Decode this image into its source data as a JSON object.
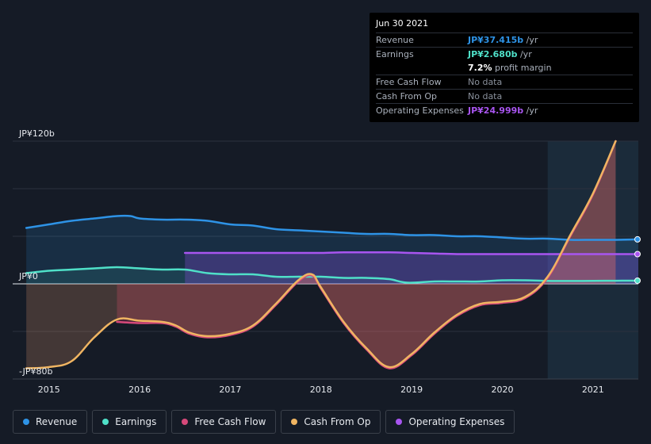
{
  "chart_data": {
    "type": "line",
    "title": "",
    "xlabel": "",
    "ylabel": "",
    "x_range": [
      2014.6,
      2021.5
    ],
    "ylim": [
      -80,
      120
    ],
    "y_ticks": [
      {
        "value": 120,
        "label": "JP¥120b"
      },
      {
        "value": 0,
        "label": "JP¥0"
      },
      {
        "value": -80,
        "label": "-JP¥80b"
      }
    ],
    "x_ticks": [
      {
        "value": 2015,
        "label": "2015"
      },
      {
        "value": 2016,
        "label": "2016"
      },
      {
        "value": 2017,
        "label": "2017"
      },
      {
        "value": 2018,
        "label": "2018"
      },
      {
        "value": 2019,
        "label": "2019"
      },
      {
        "value": 2020,
        "label": "2020"
      },
      {
        "value": 2021,
        "label": "2021"
      }
    ],
    "highlight_range": [
      2020.5,
      2021.5
    ],
    "series": [
      {
        "name": "Revenue",
        "color": "#2e93e6",
        "points": [
          [
            2014.75,
            47
          ],
          [
            2015.0,
            50
          ],
          [
            2015.25,
            53
          ],
          [
            2015.5,
            55
          ],
          [
            2015.75,
            57
          ],
          [
            2015.9,
            57
          ],
          [
            2016.0,
            55
          ],
          [
            2016.25,
            54
          ],
          [
            2016.5,
            54
          ],
          [
            2016.75,
            53
          ],
          [
            2017.0,
            50
          ],
          [
            2017.25,
            49
          ],
          [
            2017.5,
            46
          ],
          [
            2017.75,
            45
          ],
          [
            2018.0,
            44
          ],
          [
            2018.25,
            43
          ],
          [
            2018.5,
            42
          ],
          [
            2018.75,
            42
          ],
          [
            2019.0,
            41
          ],
          [
            2019.25,
            41
          ],
          [
            2019.5,
            40
          ],
          [
            2019.75,
            40
          ],
          [
            2020.0,
            39
          ],
          [
            2020.25,
            38
          ],
          [
            2020.5,
            38
          ],
          [
            2020.75,
            37
          ],
          [
            2021.0,
            37
          ],
          [
            2021.25,
            37
          ],
          [
            2021.5,
            37.4
          ]
        ]
      },
      {
        "name": "Earnings",
        "color": "#4fe0c8",
        "points": [
          [
            2014.75,
            9
          ],
          [
            2015.0,
            11
          ],
          [
            2015.25,
            12
          ],
          [
            2015.5,
            13
          ],
          [
            2015.75,
            14
          ],
          [
            2016.0,
            13
          ],
          [
            2016.25,
            12
          ],
          [
            2016.5,
            12
          ],
          [
            2016.75,
            9
          ],
          [
            2017.0,
            8
          ],
          [
            2017.25,
            8
          ],
          [
            2017.5,
            6
          ],
          [
            2017.75,
            6
          ],
          [
            2018.0,
            6
          ],
          [
            2018.25,
            5
          ],
          [
            2018.5,
            5
          ],
          [
            2018.75,
            4
          ],
          [
            2018.95,
            1
          ],
          [
            2019.25,
            2
          ],
          [
            2019.5,
            2
          ],
          [
            2019.75,
            2
          ],
          [
            2020.0,
            3
          ],
          [
            2020.25,
            3
          ],
          [
            2020.5,
            2.5
          ],
          [
            2020.75,
            2.4
          ],
          [
            2021.0,
            2.5
          ],
          [
            2021.25,
            2.6
          ],
          [
            2021.5,
            2.68
          ]
        ]
      },
      {
        "name": "Free Cash Flow",
        "color": "#d6497a",
        "points": [
          [
            2015.75,
            -32
          ],
          [
            2016.0,
            -33
          ],
          [
            2016.25,
            -33
          ],
          [
            2016.4,
            -36
          ],
          [
            2016.55,
            -42
          ],
          [
            2016.75,
            -45
          ],
          [
            2017.0,
            -43
          ],
          [
            2017.25,
            -36
          ],
          [
            2017.5,
            -18
          ],
          [
            2017.75,
            2
          ],
          [
            2017.9,
            7
          ],
          [
            2018.0,
            -4
          ],
          [
            2018.25,
            -33
          ],
          [
            2018.5,
            -55
          ],
          [
            2018.75,
            -71
          ],
          [
            2019.0,
            -60
          ],
          [
            2019.25,
            -42
          ],
          [
            2019.5,
            -27
          ],
          [
            2019.75,
            -18
          ],
          [
            2020.0,
            -16
          ],
          [
            2020.25,
            -12
          ],
          [
            2020.5,
            5
          ],
          [
            2020.75,
            40
          ],
          [
            2021.0,
            75
          ],
          [
            2021.25,
            120
          ]
        ]
      },
      {
        "name": "Cash From Op",
        "color": "#f0b562",
        "points": [
          [
            2014.75,
            -71
          ],
          [
            2015.0,
            -70
          ],
          [
            2015.25,
            -65
          ],
          [
            2015.5,
            -45
          ],
          [
            2015.75,
            -30
          ],
          [
            2016.0,
            -31
          ],
          [
            2016.25,
            -32
          ],
          [
            2016.4,
            -35
          ],
          [
            2016.55,
            -41
          ],
          [
            2016.75,
            -44
          ],
          [
            2017.0,
            -42
          ],
          [
            2017.25,
            -35
          ],
          [
            2017.5,
            -17
          ],
          [
            2017.75,
            3
          ],
          [
            2017.9,
            8
          ],
          [
            2018.0,
            -3
          ],
          [
            2018.25,
            -32
          ],
          [
            2018.5,
            -54
          ],
          [
            2018.75,
            -70
          ],
          [
            2019.0,
            -59
          ],
          [
            2019.25,
            -41
          ],
          [
            2019.5,
            -26
          ],
          [
            2019.75,
            -17
          ],
          [
            2020.0,
            -15
          ],
          [
            2020.25,
            -11
          ],
          [
            2020.5,
            6
          ],
          [
            2020.75,
            41
          ],
          [
            2021.0,
            76
          ],
          [
            2021.25,
            120
          ]
        ]
      },
      {
        "name": "Operating Expenses",
        "color": "#a855f0",
        "points": [
          [
            2016.5,
            26
          ],
          [
            2016.75,
            26
          ],
          [
            2017.0,
            26
          ],
          [
            2017.25,
            26
          ],
          [
            2017.5,
            26
          ],
          [
            2017.75,
            26
          ],
          [
            2018.0,
            26
          ],
          [
            2018.25,
            26.5
          ],
          [
            2018.5,
            26.5
          ],
          [
            2018.75,
            26.5
          ],
          [
            2019.0,
            26
          ],
          [
            2019.25,
            25.5
          ],
          [
            2019.5,
            25
          ],
          [
            2019.75,
            25
          ],
          [
            2020.0,
            25
          ],
          [
            2020.25,
            25
          ],
          [
            2020.5,
            25
          ],
          [
            2020.75,
            25
          ],
          [
            2021.0,
            25
          ],
          [
            2021.25,
            25
          ],
          [
            2021.5,
            25
          ]
        ]
      }
    ]
  },
  "tooltip": {
    "date": "Jun 30 2021",
    "rows": [
      {
        "label": "Revenue",
        "value": "JP¥37.415b",
        "unit": " /yr",
        "color": "#2e93e6"
      },
      {
        "label": "Earnings",
        "value": "JP¥2.680b",
        "unit": " /yr",
        "color": "#4fe0c8"
      },
      {
        "label": "",
        "value": "7.2%",
        "unit": " profit margin",
        "color": "#ffffff"
      },
      {
        "label": "Free Cash Flow",
        "value": "No data",
        "unit": "",
        "color": "#8a919c"
      },
      {
        "label": "Cash From Op",
        "value": "No data",
        "unit": "",
        "color": "#8a919c"
      },
      {
        "label": "Operating Expenses",
        "value": "JP¥24.999b",
        "unit": " /yr",
        "color": "#a855f0"
      }
    ]
  },
  "legend": [
    {
      "label": "Revenue",
      "color": "#2e93e6"
    },
    {
      "label": "Earnings",
      "color": "#4fe0c8"
    },
    {
      "label": "Free Cash Flow",
      "color": "#d6497a"
    },
    {
      "label": "Cash From Op",
      "color": "#f0b562"
    },
    {
      "label": "Operating Expenses",
      "color": "#a855f0"
    }
  ]
}
